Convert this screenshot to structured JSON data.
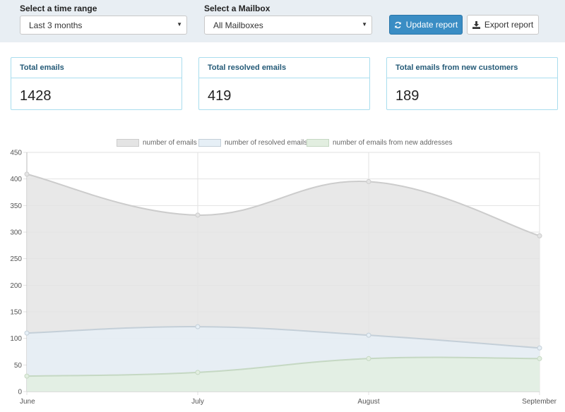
{
  "filters": {
    "time_range": {
      "label": "Select a time range",
      "value": "Last 3 months"
    },
    "mailbox": {
      "label": "Select a Mailbox",
      "value": "All Mailboxes"
    }
  },
  "buttons": {
    "update": {
      "label": "Update report",
      "icon": "refresh-icon"
    },
    "export": {
      "label": "Export report",
      "icon": "download-icon"
    }
  },
  "stats": [
    {
      "title": "Total emails",
      "value": "1428"
    },
    {
      "title": "Total resolved emails",
      "value": "419"
    },
    {
      "title": "Total emails from new customers",
      "value": "189"
    }
  ],
  "chart_data": {
    "type": "area",
    "categories": [
      "June",
      "July",
      "August",
      "September"
    ],
    "ylim": [
      0,
      450
    ],
    "yticks": [
      0,
      50,
      100,
      150,
      200,
      250,
      300,
      350,
      400,
      450
    ],
    "grid": true,
    "legend_position": "top",
    "series": [
      {
        "name": "number of emails",
        "values": [
          409,
          332,
          395,
          293
        ],
        "fill": "#e4e4e4",
        "stroke": "#cccccc"
      },
      {
        "name": "number of resolved emails",
        "values": [
          110,
          122,
          106,
          82
        ],
        "fill": "#e6eff6",
        "stroke": "#c4cfd8"
      },
      {
        "name": "number of emails from new addresses",
        "values": [
          29,
          36,
          62,
          62
        ],
        "fill": "#e2eee0",
        "stroke": "#c5d8c3"
      }
    ]
  }
}
